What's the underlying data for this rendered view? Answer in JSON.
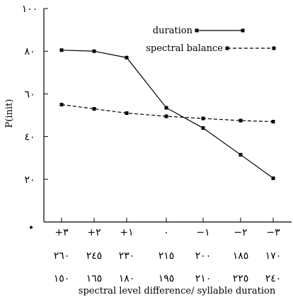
{
  "chart_data": {
    "type": "line",
    "ylabel": "P(init)",
    "xlabel": "spectral level difference/ syllable duration",
    "ylim": [
      0,
      100
    ],
    "y_ticks": [
      {
        "value": 0,
        "label": "•"
      },
      {
        "value": 20,
        "label": "٢٠"
      },
      {
        "value": 40,
        "label": "٤٠"
      },
      {
        "value": 60,
        "label": "٦٠"
      },
      {
        "value": 80,
        "label": "٨٠"
      },
      {
        "value": 100,
        "label": "١٠٠"
      }
    ],
    "x_tick_rows": [
      [
        "+٣",
        "+٢",
        "+١",
        "٠",
        "−١",
        "−٢",
        "−٣"
      ],
      [
        "٢٦٠",
        "٢٤٥",
        "٢٣٠",
        "٢١٥",
        "٢٠٠",
        "١٨٥",
        "١٧٠"
      ],
      [
        "١٥٠",
        "١٦٥",
        "١٨٠",
        "١٩٥",
        "٢١٠",
        "٢٢٥",
        "٢٤٠"
      ]
    ],
    "legend_position": "top-right",
    "series": [
      {
        "name": "duration",
        "style": "solid",
        "color": "#000000",
        "values": [
          80.5,
          80,
          77,
          53.5,
          44,
          31.5,
          20.5
        ]
      },
      {
        "name": "spectral balance",
        "style": "dashed",
        "color": "#000000",
        "values": [
          55,
          53,
          51,
          49.5,
          48.5,
          47.5,
          47
        ]
      }
    ]
  }
}
